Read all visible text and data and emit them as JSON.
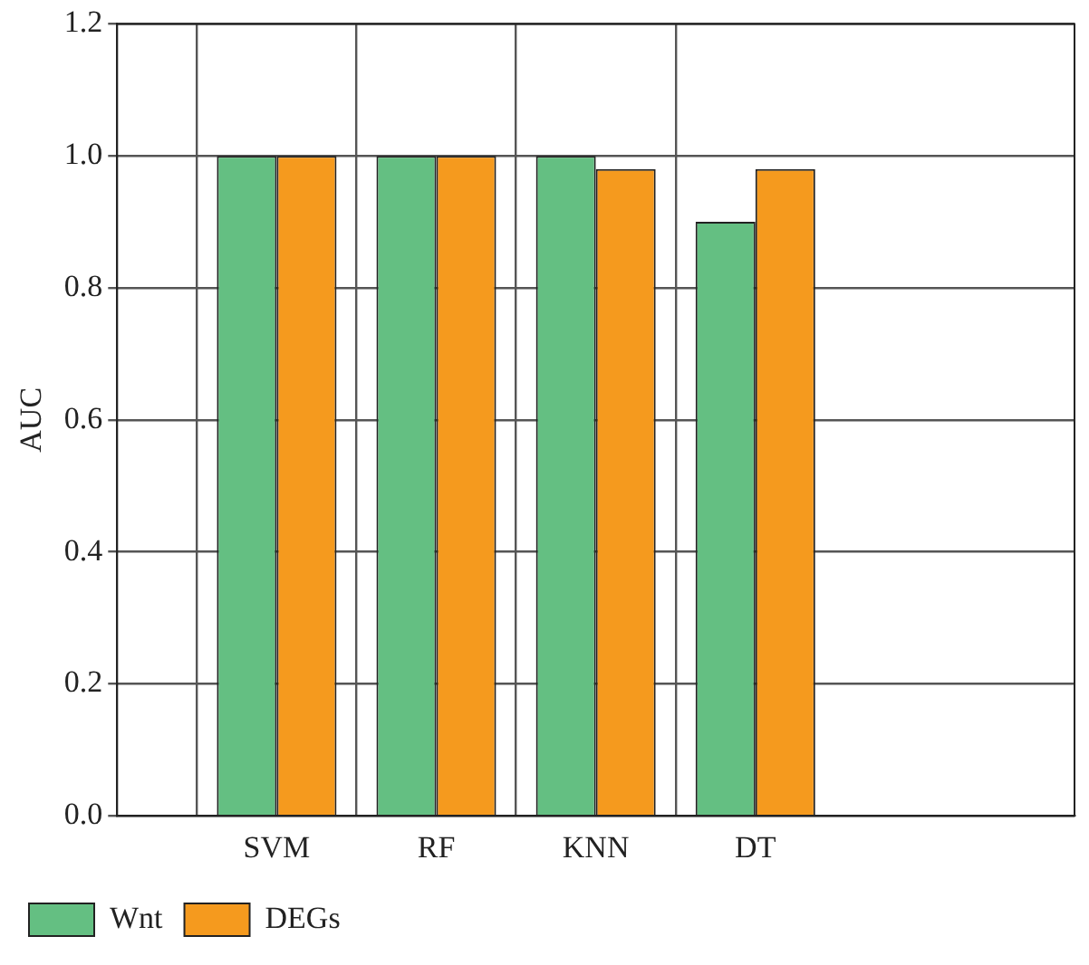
{
  "chart_data": {
    "type": "bar",
    "ylabel": "AUC",
    "categories": [
      null,
      "SVM",
      "RF",
      "KNN",
      "DT",
      null,
      null
    ],
    "series": [
      {
        "name": "Wnt",
        "color": "#64bf82",
        "values": [
          null,
          1.0,
          1.0,
          1.0,
          0.9,
          null,
          null
        ]
      },
      {
        "name": "DEGs",
        "color": "#f59a1e",
        "values": [
          null,
          1.0,
          1.0,
          0.98,
          0.98,
          null,
          null
        ]
      }
    ],
    "ylim": [
      0,
      1.2
    ],
    "yticks": [
      {
        "value": 0,
        "label": "0.0"
      },
      {
        "value": 0.2,
        "label": "0.2"
      },
      {
        "value": 0.4,
        "label": "0.4"
      },
      {
        "value": 0.6,
        "label": "0.6"
      },
      {
        "value": 0.8,
        "label": "0.8"
      },
      {
        "value": 1,
        "label": "1.0"
      },
      {
        "value": 1.2,
        "label": "1.2"
      }
    ],
    "grid": true,
    "legend": "bottom left"
  }
}
